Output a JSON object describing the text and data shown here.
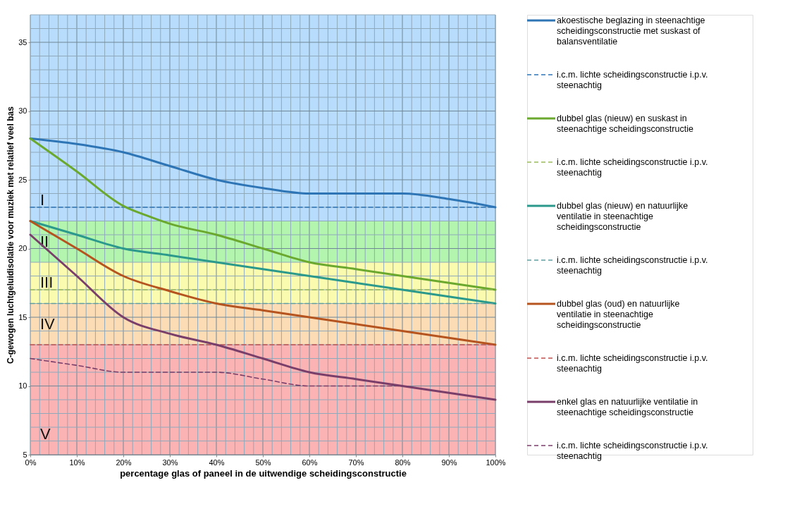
{
  "chart_data": {
    "type": "line",
    "xlabel": "percentage glas of paneel in de uitwendige scheidingsconstructie",
    "ylabel": "C-gewogen luchtgeluidisolatie voor muziek met relatief veel bas",
    "xlim": [
      0,
      100
    ],
    "ylim": [
      5,
      37
    ],
    "xticks": [
      {
        "value": 0,
        "label": "0%"
      },
      {
        "value": 2,
        "label": null
      },
      {
        "value": 4,
        "label": null
      },
      {
        "value": 6,
        "label": null
      },
      {
        "value": 8,
        "label": null
      },
      {
        "value": 10,
        "label": "10%"
      },
      {
        "value": 12,
        "label": null
      },
      {
        "value": 14,
        "label": null
      },
      {
        "value": 16,
        "label": null
      },
      {
        "value": 18,
        "label": null
      },
      {
        "value": 20,
        "label": "20%"
      },
      {
        "value": 22,
        "label": null
      },
      {
        "value": 24,
        "label": null
      },
      {
        "value": 26,
        "label": null
      },
      {
        "value": 28,
        "label": null
      },
      {
        "value": 30,
        "label": "30%"
      },
      {
        "value": 32,
        "label": null
      },
      {
        "value": 34,
        "label": null
      },
      {
        "value": 36,
        "label": null
      },
      {
        "value": 38,
        "label": null
      },
      {
        "value": 40,
        "label": "40%"
      },
      {
        "value": 42,
        "label": null
      },
      {
        "value": 44,
        "label": null
      },
      {
        "value": 46,
        "label": null
      },
      {
        "value": 48,
        "label": null
      },
      {
        "value": 50,
        "label": "50%"
      },
      {
        "value": 52,
        "label": null
      },
      {
        "value": 54,
        "label": null
      },
      {
        "value": 56,
        "label": null
      },
      {
        "value": 58,
        "label": null
      },
      {
        "value": 60,
        "label": "60%"
      },
      {
        "value": 62,
        "label": null
      },
      {
        "value": 64,
        "label": null
      },
      {
        "value": 66,
        "label": null
      },
      {
        "value": 68,
        "label": null
      },
      {
        "value": 70,
        "label": "70%"
      },
      {
        "value": 72,
        "label": null
      },
      {
        "value": 74,
        "label": null
      },
      {
        "value": 76,
        "label": null
      },
      {
        "value": 78,
        "label": null
      },
      {
        "value": 80,
        "label": "80%"
      },
      {
        "value": 82,
        "label": null
      },
      {
        "value": 84,
        "label": null
      },
      {
        "value": 86,
        "label": null
      },
      {
        "value": 88,
        "label": null
      },
      {
        "value": 90,
        "label": "90%"
      },
      {
        "value": 92,
        "label": null
      },
      {
        "value": 94,
        "label": null
      },
      {
        "value": 96,
        "label": null
      },
      {
        "value": 98,
        "label": null
      },
      {
        "value": 100,
        "label": "100%"
      }
    ],
    "yticks": [
      5,
      {
        "value": 6,
        "label": null
      },
      {
        "value": 7,
        "label": null
      },
      {
        "value": 8,
        "label": null
      },
      {
        "value": 9,
        "label": null
      },
      10,
      {
        "value": 11,
        "label": null
      },
      {
        "value": 12,
        "label": null
      },
      {
        "value": 13,
        "label": null
      },
      {
        "value": 14,
        "label": null
      },
      15,
      {
        "value": 16,
        "label": null
      },
      {
        "value": 17,
        "label": null
      },
      {
        "value": 18,
        "label": null
      },
      {
        "value": 19,
        "label": null
      },
      20,
      {
        "value": 21,
        "label": null
      },
      {
        "value": 22,
        "label": null
      },
      {
        "value": 23,
        "label": null
      },
      {
        "value": 24,
        "label": null
      },
      25,
      {
        "value": 26,
        "label": null
      },
      {
        "value": 27,
        "label": null
      },
      {
        "value": 28,
        "label": null
      },
      {
        "value": 29,
        "label": null
      },
      30,
      {
        "value": 31,
        "label": null
      },
      {
        "value": 32,
        "label": null
      },
      {
        "value": 33,
        "label": null
      },
      {
        "value": 34,
        "label": null
      },
      35,
      {
        "value": 36,
        "label": null
      },
      {
        "value": 37,
        "label": null
      }
    ],
    "grid": true,
    "legend": "right",
    "bands": [
      {
        "axis": "y",
        "from": 22,
        "to": 37,
        "label": "I",
        "color": "#b8dcfb"
      },
      {
        "axis": "y",
        "from": 19,
        "to": 22,
        "label": "II",
        "color": "#b3f5ae"
      },
      {
        "axis": "y",
        "from": 16,
        "to": 19,
        "label": "III",
        "color": "#fbfbb0"
      },
      {
        "axis": "y",
        "from": 13,
        "to": 16,
        "label": "IV",
        "color": "#fcdcb5"
      },
      {
        "axis": "y",
        "from": 5,
        "to": 13,
        "label": "V",
        "color": "#fbb3b3"
      }
    ],
    "series": [
      {
        "name": "akoestische beglazing in steenachtige scheidingsconstructie met suskast of balansventilatie",
        "color": "#2e75b6",
        "line_style": "solid",
        "x": [
          0,
          10,
          20,
          30,
          40,
          50,
          60,
          65,
          70,
          80,
          90,
          100
        ],
        "values": [
          28,
          27.6,
          27,
          26,
          25,
          24.4,
          24,
          24,
          24,
          24,
          23.6,
          23
        ]
      },
      {
        "name": "i.c.m. lichte scheidingsconstructie i.p.v. steenachtig",
        "color": "#2e75b6",
        "line_style": "dashed",
        "x": [
          0,
          100
        ],
        "values": [
          23,
          23
        ]
      },
      {
        "name": "dubbel glas (nieuw) en suskast in steenachtige scheidingsconstructie",
        "color": "#6aa82e",
        "line_style": "solid",
        "x": [
          0,
          10,
          20,
          25,
          30,
          40,
          50,
          60,
          70,
          80,
          90,
          100
        ],
        "values": [
          28,
          25.6,
          23.1,
          22.4,
          21.8,
          21,
          20,
          19,
          18.5,
          18,
          17.5,
          17
        ]
      },
      {
        "name": "i.c.m. lichte scheidingsconstructie i.p.v. steenachtig",
        "color": "#9bbb59",
        "line_style": "dashed",
        "x": [
          0,
          100
        ],
        "values": [
          17,
          17
        ]
      },
      {
        "name": "dubbel glas (nieuw) en natuurlijke ventilatie in steenachtige scheidingsconstructie",
        "color": "#2b9a8c",
        "line_style": "solid",
        "x": [
          0,
          10,
          20,
          30,
          40,
          50,
          60,
          70,
          80,
          90,
          100
        ],
        "values": [
          22,
          21,
          20,
          19.5,
          19,
          18.5,
          18,
          17.5,
          17,
          16.5,
          16
        ]
      },
      {
        "name": "i.c.m. lichte scheidingsconstructie i.p.v. steenachtig",
        "color": "#5f9ea0",
        "line_style": "dashed",
        "x": [
          0,
          100
        ],
        "values": [
          16,
          16
        ]
      },
      {
        "name": "dubbel glas (oud) en natuurlijke ventilatie in steenachtige scheidingsconstructie",
        "color": "#b5541f",
        "line_style": "solid",
        "x": [
          0,
          10,
          20,
          30,
          40,
          50,
          60,
          70,
          80,
          90,
          100
        ],
        "values": [
          22,
          20,
          18,
          16.9,
          16,
          15.5,
          15,
          14.5,
          14,
          13.5,
          13
        ]
      },
      {
        "name": "i.c.m. lichte scheidingsconstructie i.p.v. steenachtig",
        "color": "#c0504d",
        "line_style": "dashed",
        "x": [
          0,
          100
        ],
        "values": [
          13,
          13
        ]
      },
      {
        "name": "enkel glas en natuurlijke ventilatie in steenachtige scheidingsconstructie",
        "color": "#7a3e6a",
        "line_style": "solid",
        "x": [
          0,
          10,
          20,
          30,
          40,
          50,
          60,
          70,
          80,
          90,
          100
        ],
        "values": [
          21,
          18,
          15,
          13.8,
          13,
          12,
          11,
          10.5,
          10,
          9.5,
          9
        ]
      },
      {
        "name": "i.c.m. lichte scheidingsconstructie i.p.v. steenachtig",
        "color": "#7a3e6a",
        "line_style": "dashed",
        "x": [
          0,
          10,
          20,
          25,
          30,
          40,
          50,
          60,
          65,
          70,
          80
        ],
        "values": [
          12,
          11.5,
          11,
          11,
          11,
          11,
          10.5,
          10,
          10,
          10,
          10
        ]
      }
    ]
  }
}
